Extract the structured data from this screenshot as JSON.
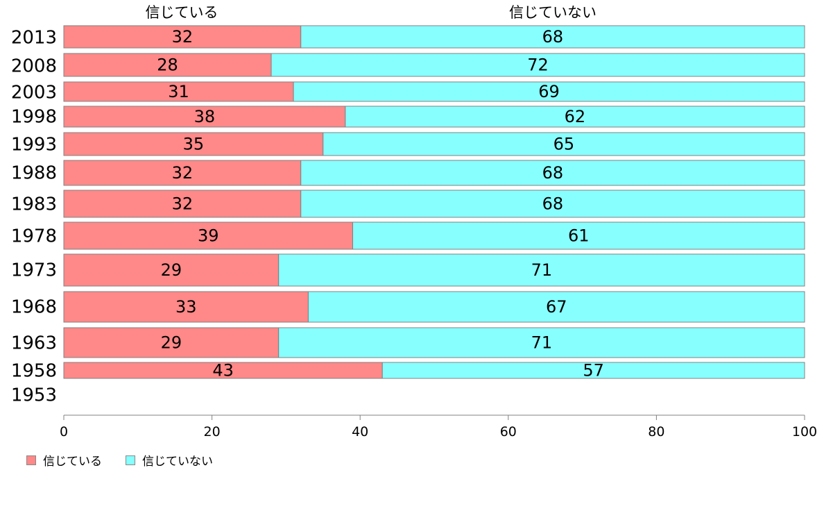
{
  "chart_data": {
    "type": "bar",
    "orientation": "horizontal",
    "stacked": true,
    "categories": [
      "2013",
      "2008",
      "2003",
      "1998",
      "1993",
      "1988",
      "1983",
      "1978",
      "1973",
      "1968",
      "1963",
      "1958",
      "1953"
    ],
    "series": [
      {
        "name": "信じている",
        "color": "#ff8888",
        "values": [
          32,
          28,
          31,
          38,
          35,
          32,
          32,
          39,
          29,
          33,
          29,
          43,
          null
        ]
      },
      {
        "name": "信じていない",
        "color": "#88ffff",
        "values": [
          68,
          72,
          69,
          62,
          65,
          68,
          68,
          61,
          71,
          67,
          71,
          57,
          null
        ]
      }
    ],
    "xlim": [
      0,
      100
    ],
    "xticks": [
      0,
      20,
      40,
      60,
      80,
      100
    ],
    "column_headers": [
      "信じている",
      "信じていない"
    ],
    "legend_position": "bottom-left",
    "grid": false
  }
}
